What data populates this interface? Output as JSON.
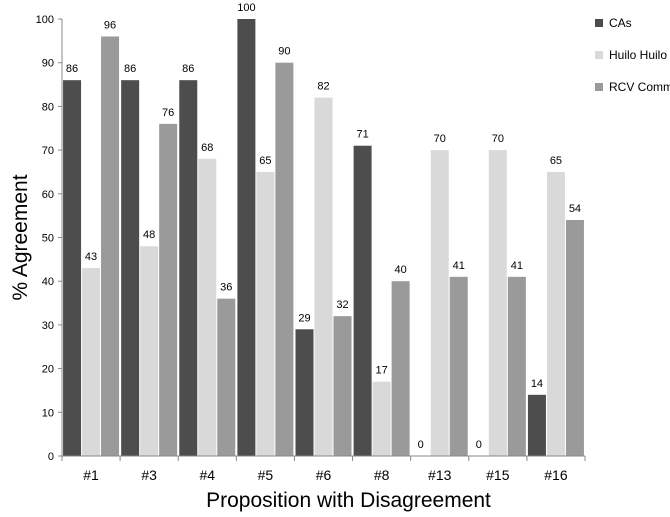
{
  "chart_data": {
    "type": "bar",
    "xlabel": "Proposition with Disagreement",
    "ylabel": "% Agreement",
    "ylim": [
      0,
      100
    ],
    "yticks": [
      0,
      10,
      20,
      30,
      40,
      50,
      60,
      70,
      80,
      90,
      100
    ],
    "grid": false,
    "legend_position": "top-right",
    "categories": [
      "#1",
      "#3",
      "#4",
      "#5",
      "#6",
      "#8",
      "#13",
      "#15",
      "#16"
    ],
    "series": [
      {
        "name": "CAs",
        "color": "#4d4d4d",
        "values": [
          86,
          86,
          86,
          100,
          29,
          71,
          0,
          0,
          14
        ]
      },
      {
        "name": "Huilo Huilo Comms",
        "color": "#d9d9d9",
        "values": [
          43,
          48,
          68,
          65,
          82,
          17,
          70,
          70,
          65
        ]
      },
      {
        "name": "RCV Comms",
        "color": "#9a9a9a",
        "values": [
          96,
          76,
          36,
          90,
          32,
          40,
          41,
          41,
          54
        ]
      }
    ]
  }
}
